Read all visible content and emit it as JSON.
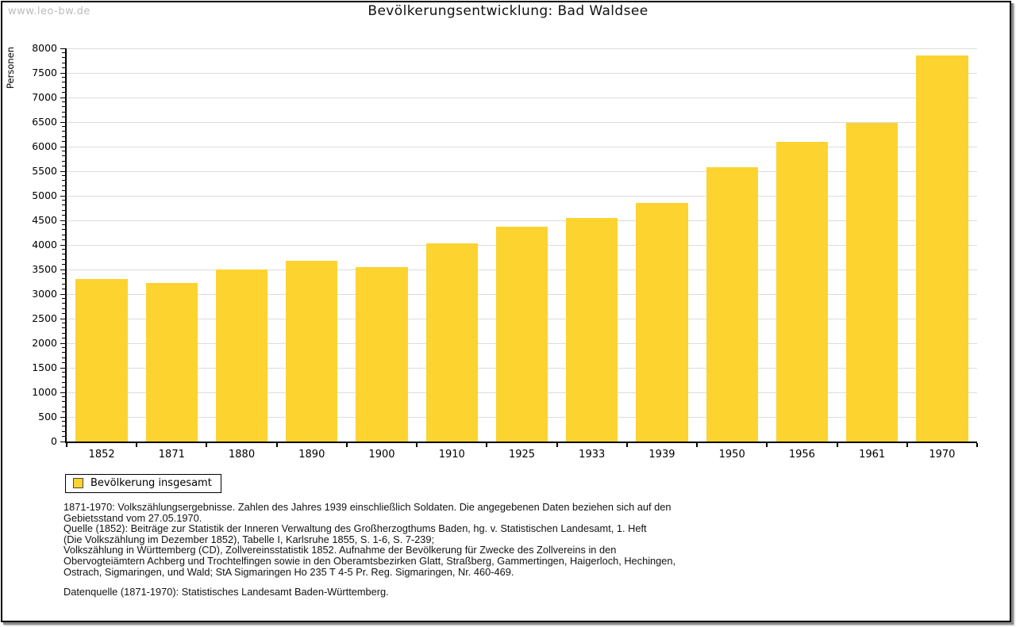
{
  "watermark": "www.leo-bw.de",
  "title": "Bevölkerungsentwicklung: Bad Waldsee",
  "chart_data": {
    "type": "bar",
    "title": "Bevölkerungsentwicklung: Bad Waldsee",
    "xlabel": "",
    "ylabel": "Personen",
    "categories": [
      "1852",
      "1871",
      "1880",
      "1890",
      "1900",
      "1910",
      "1925",
      "1933",
      "1939",
      "1950",
      "1956",
      "1961",
      "1970"
    ],
    "values": [
      3300,
      3225,
      3495,
      3680,
      3550,
      4030,
      4365,
      4545,
      4850,
      5575,
      6100,
      6480,
      7860
    ],
    "series_name": "Bevölkerung insgesamt",
    "ylim": [
      0,
      8000
    ],
    "ytick_step": 500,
    "minor_tick_step": 100,
    "grid": true,
    "legend_position": "below-left",
    "bar_color": "#FDD32F"
  },
  "legend": {
    "label": "Bevölkerung insgesamt",
    "swatch_color": "#FDD32F"
  },
  "footnotes": {
    "lines": [
      "1871-1970: Volkszählungsergebnisse. Zahlen des Jahres 1939 einschließlich Soldaten. Die angegebenen Daten beziehen sich auf den",
      "Gebietsstand vom 27.05.1970.",
      "Quelle (1852): Beiträge zur Statistik der Inneren Verwaltung des Großherzogthums Baden, hg. v. Statistischen Landesamt, 1. Heft",
      "(Die Volkszählung im Dezember 1852), Tabelle I, Karlsruhe 1855, S. 1-6, S. 7-239;",
      "Volkszählung in Württemberg (CD), Zollvereinsstatistik 1852. Aufnahme der Bevölkerung für Zwecke des Zollvereins in den",
      "Obervogteiämtern Achberg und Trochtelfingen sowie in den Oberamtsbezirken Glatt, Straßberg, Gammertingen, Haigerloch, Hechingen,",
      "Ostrach, Sigmaringen, und Wald; StA Sigmaringen Ho 235 T 4-5 Pr. Reg. Sigmaringen, Nr. 460-469."
    ],
    "datasource": "Datenquelle (1871-1970): Statistisches Landesamt Baden-Württemberg."
  },
  "colors": {
    "bar": "#FDD32F",
    "grid": "#DCDCDC",
    "axis": "#000000",
    "watermark": "#BCBCBC"
  }
}
